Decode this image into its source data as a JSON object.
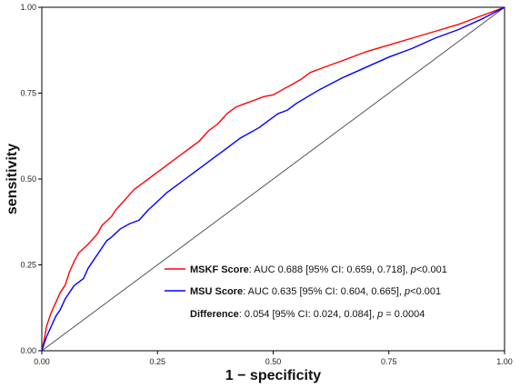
{
  "chart_data": {
    "type": "line",
    "xlabel": "1 − specificity",
    "ylabel": "sensitivity",
    "xlim": [
      0,
      1
    ],
    "ylim": [
      0,
      1
    ],
    "xticks": [
      "0.00",
      "0.25",
      "0.50",
      "0.75",
      "1.00"
    ],
    "yticks": [
      "0.00",
      "0.25",
      "0.50",
      "0.75",
      "1.00"
    ],
    "grid": false,
    "legend_position": "bottom-right",
    "series": [
      {
        "name": "MSKF Score",
        "color": "#ff0000",
        "x": [
          0,
          0.005,
          0.01,
          0.015,
          0.02,
          0.03,
          0.04,
          0.05,
          0.06,
          0.07,
          0.08,
          0.1,
          0.12,
          0.13,
          0.15,
          0.16,
          0.18,
          0.2,
          0.22,
          0.24,
          0.26,
          0.28,
          0.3,
          0.32,
          0.34,
          0.36,
          0.38,
          0.4,
          0.42,
          0.44,
          0.46,
          0.48,
          0.5,
          0.52,
          0.54,
          0.56,
          0.58,
          0.6,
          0.65,
          0.7,
          0.75,
          0.8,
          0.85,
          0.9,
          0.95,
          1.0
        ],
        "y": [
          0,
          0.03,
          0.07,
          0.09,
          0.11,
          0.14,
          0.17,
          0.19,
          0.23,
          0.26,
          0.285,
          0.31,
          0.34,
          0.365,
          0.39,
          0.41,
          0.44,
          0.47,
          0.49,
          0.51,
          0.53,
          0.55,
          0.57,
          0.59,
          0.61,
          0.64,
          0.66,
          0.69,
          0.71,
          0.72,
          0.73,
          0.74,
          0.745,
          0.76,
          0.775,
          0.79,
          0.81,
          0.82,
          0.845,
          0.87,
          0.89,
          0.91,
          0.93,
          0.95,
          0.975,
          1.0
        ]
      },
      {
        "name": "MSU Score",
        "color": "#0000ff",
        "x": [
          0,
          0.005,
          0.01,
          0.02,
          0.03,
          0.04,
          0.05,
          0.06,
          0.07,
          0.08,
          0.09,
          0.1,
          0.11,
          0.12,
          0.13,
          0.14,
          0.15,
          0.17,
          0.19,
          0.21,
          0.23,
          0.25,
          0.27,
          0.29,
          0.31,
          0.33,
          0.35,
          0.37,
          0.39,
          0.41,
          0.43,
          0.45,
          0.47,
          0.49,
          0.51,
          0.53,
          0.55,
          0.6,
          0.65,
          0.7,
          0.75,
          0.8,
          0.85,
          0.9,
          0.95,
          1.0
        ],
        "y": [
          0,
          0.02,
          0.04,
          0.07,
          0.1,
          0.12,
          0.15,
          0.17,
          0.19,
          0.2,
          0.21,
          0.24,
          0.26,
          0.28,
          0.3,
          0.32,
          0.33,
          0.355,
          0.37,
          0.38,
          0.41,
          0.435,
          0.46,
          0.48,
          0.5,
          0.52,
          0.54,
          0.56,
          0.58,
          0.6,
          0.62,
          0.635,
          0.65,
          0.67,
          0.69,
          0.7,
          0.72,
          0.76,
          0.795,
          0.825,
          0.855,
          0.88,
          0.91,
          0.935,
          0.965,
          1.0
        ]
      }
    ],
    "reference_line": {
      "x": [
        0,
        1
      ],
      "y": [
        0,
        1
      ],
      "color": "#444444"
    },
    "annotations": {
      "mskf_label": "MSKF Score",
      "mskf_text": ": AUC 0.688 [95% CI: 0.659, 0.718], ",
      "mskf_p": "p",
      "mskf_p_val": "<0.001",
      "msu_label": "MSU Score",
      "msu_text": ": AUC 0.635 [95% CI: 0.604, 0.665], ",
      "msu_p": "p",
      "msu_p_val": "<0.001",
      "diff_label": "Difference",
      "diff_text": ": 0.054 [95% CI: 0.024, 0.084], ",
      "diff_p": "p",
      "diff_p_val": " = 0.0004"
    }
  }
}
